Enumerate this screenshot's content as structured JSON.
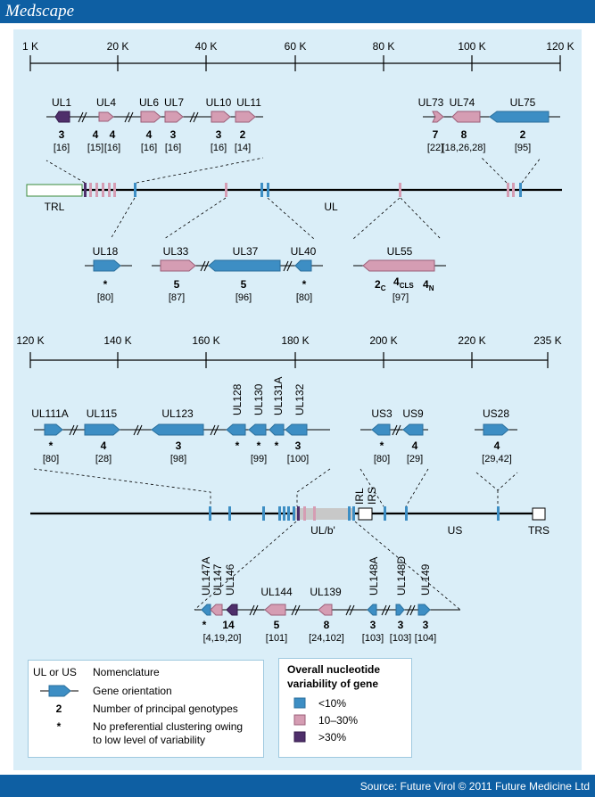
{
  "header": {
    "brand": "Medscape"
  },
  "footer": {
    "source": "Source: Future Virol © 2011 Future Medicine Ltd"
  },
  "colors": {
    "low": "#3d8ec4",
    "mid": "#d59db3",
    "high": "#4f2f6b",
    "line": "#000000"
  },
  "scale1": {
    "ticks": [
      "1 K",
      "20 K",
      "40 K",
      "60 K",
      "80 K",
      "100 K",
      "120 K"
    ]
  },
  "scale2": {
    "ticks": [
      "120 K",
      "140 K",
      "160 K",
      "180 K",
      "200 K",
      "220 K",
      "235 K"
    ]
  },
  "genome1": {
    "trl": "TRL",
    "ul": "UL"
  },
  "genome2": {
    "irl": "IRL",
    "irs": "IRS",
    "ulb": "UL/b'",
    "us": "US",
    "trs": "TRS"
  },
  "genes": {
    "ul1": {
      "name": "UL1",
      "num": "3",
      "ref": "[16]"
    },
    "ul4": {
      "name": "UL4",
      "num": "4",
      "ref": "[16]"
    },
    "ul4pre": {
      "num": "4",
      "ref": "[15]"
    },
    "ul6": {
      "name": "UL6",
      "num": "4",
      "ref": "[16]"
    },
    "ul7": {
      "name": "UL7",
      "num": "3",
      "ref": "[16]"
    },
    "ul10": {
      "name": "UL10",
      "num": "3",
      "ref": "[16]"
    },
    "ul11": {
      "name": "UL11",
      "num": "2",
      "ref": "[14]"
    },
    "ul73": {
      "name": "UL73",
      "num": "7",
      "ref": "[22]"
    },
    "ul74": {
      "name": "UL74",
      "num": "8",
      "ref": "[18,26,28]"
    },
    "ul75": {
      "name": "UL75",
      "num": "2",
      "ref": "[95]"
    },
    "ul18": {
      "name": "UL18",
      "num": "*",
      "ref": "[80]"
    },
    "ul33": {
      "name": "UL33",
      "num": "5",
      "ref": "[87]"
    },
    "ul37": {
      "name": "UL37",
      "num": "5",
      "ref": "[96]"
    },
    "ul40": {
      "name": "UL40",
      "num": "*",
      "ref": "[80]"
    },
    "ul55": {
      "name": "UL55",
      "num1": "2",
      "sub1": "C",
      "num2": "4",
      "sub2": "CLS",
      "num3": "4",
      "sub3": "N",
      "ref": "[97]"
    },
    "ul111a": {
      "name": "UL111A",
      "num": "*",
      "ref": "[80]"
    },
    "ul115": {
      "name": "UL115",
      "num": "4",
      "ref": "[28]"
    },
    "ul123": {
      "name": "UL123",
      "num": "3",
      "ref": "[98]"
    },
    "ul128": {
      "name": "UL128",
      "num": "*"
    },
    "ul130": {
      "name": "UL130",
      "num": "*",
      "ref": "[99]"
    },
    "ul131a": {
      "name": "UL131A",
      "num": "*"
    },
    "ul132": {
      "name": "UL132",
      "num": "3",
      "ref": "[100]"
    },
    "us3": {
      "name": "US3",
      "num": "*",
      "ref": "[80]"
    },
    "us9": {
      "name": "US9",
      "num": "4",
      "ref": "[29]"
    },
    "us28": {
      "name": "US28",
      "num": "4",
      "ref": "[29,42]"
    },
    "ul147a": {
      "name": "UL147A",
      "num": "*"
    },
    "ul147": {
      "name": "UL147",
      "num": "14",
      "ref": "[4,19,20]"
    },
    "ul146": {
      "name": "UL146"
    },
    "ul144": {
      "name": "UL144",
      "num": "5",
      "ref": "[101]"
    },
    "ul139": {
      "name": "UL139",
      "num": "8",
      "ref": "[24,102]"
    },
    "ul148a": {
      "name": "UL148A",
      "num": "3",
      "ref": "[103]"
    },
    "ul148d": {
      "name": "UL148D",
      "num": "3",
      "ref": "[103]"
    },
    "ul149": {
      "name": "UL149",
      "num": "3",
      "ref": "[104]"
    }
  },
  "legend_left": {
    "items": [
      {
        "symbol": "UL or US",
        "text": "Nomenclature"
      },
      {
        "symbol": "",
        "text": "Gene orientation"
      },
      {
        "symbol": "2",
        "text": "Number of principal genotypes"
      },
      {
        "symbol": "*",
        "text": "No preferential clustering owing"
      },
      {
        "symbol": "",
        "text": "to low level of variability"
      }
    ]
  },
  "legend_right": {
    "title1": "Overall nucleotide",
    "title2": "variability of gene",
    "items": [
      {
        "label": "<10%",
        "color": "#3d8ec4"
      },
      {
        "label": "10–30%",
        "color": "#d59db3"
      },
      {
        "label": ">30%",
        "color": "#4f2f6b"
      }
    ]
  }
}
